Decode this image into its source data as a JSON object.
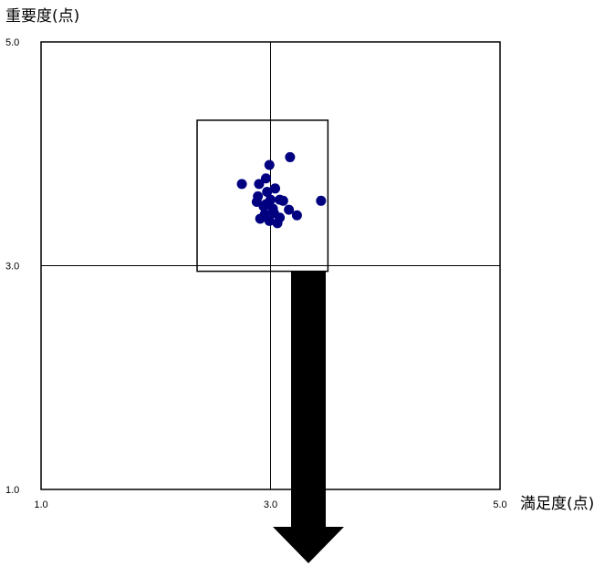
{
  "chart_data": {
    "type": "scatter",
    "ylabel": "重要度(点)",
    "xlabel": "満足度(点)",
    "xlim": [
      1.0,
      5.0
    ],
    "ylim": [
      1.0,
      5.0
    ],
    "x_ticks": [
      "1.0",
      "3.0",
      "5.0"
    ],
    "y_ticks": [
      "1.0",
      "3.0",
      "5.0"
    ],
    "reference_lines": {
      "x": 3.0,
      "y": 3.0
    },
    "highlight_box": {
      "x_range": [
        2.36,
        3.5
      ],
      "y_range": [
        2.95,
        4.3
      ]
    },
    "arrow": {
      "direction": "down"
    },
    "grid": false,
    "marker_color": "#000080",
    "points": [
      [
        3.17,
        3.97
      ],
      [
        2.99,
        3.9
      ],
      [
        2.75,
        3.73
      ],
      [
        2.9,
        3.73
      ],
      [
        2.96,
        3.78
      ],
      [
        3.04,
        3.69
      ],
      [
        2.97,
        3.66
      ],
      [
        2.89,
        3.62
      ],
      [
        3.0,
        3.59
      ],
      [
        3.08,
        3.59
      ],
      [
        2.88,
        3.57
      ],
      [
        3.11,
        3.58
      ],
      [
        3.44,
        3.58
      ],
      [
        2.94,
        3.53
      ],
      [
        3.02,
        3.51
      ],
      [
        3.03,
        3.47
      ],
      [
        3.16,
        3.5
      ],
      [
        2.95,
        3.46
      ],
      [
        3.08,
        3.43
      ],
      [
        3.23,
        3.45
      ],
      [
        2.91,
        3.42
      ],
      [
        2.99,
        3.4
      ],
      [
        3.06,
        3.38
      ],
      [
        2.96,
        3.55
      ]
    ]
  }
}
